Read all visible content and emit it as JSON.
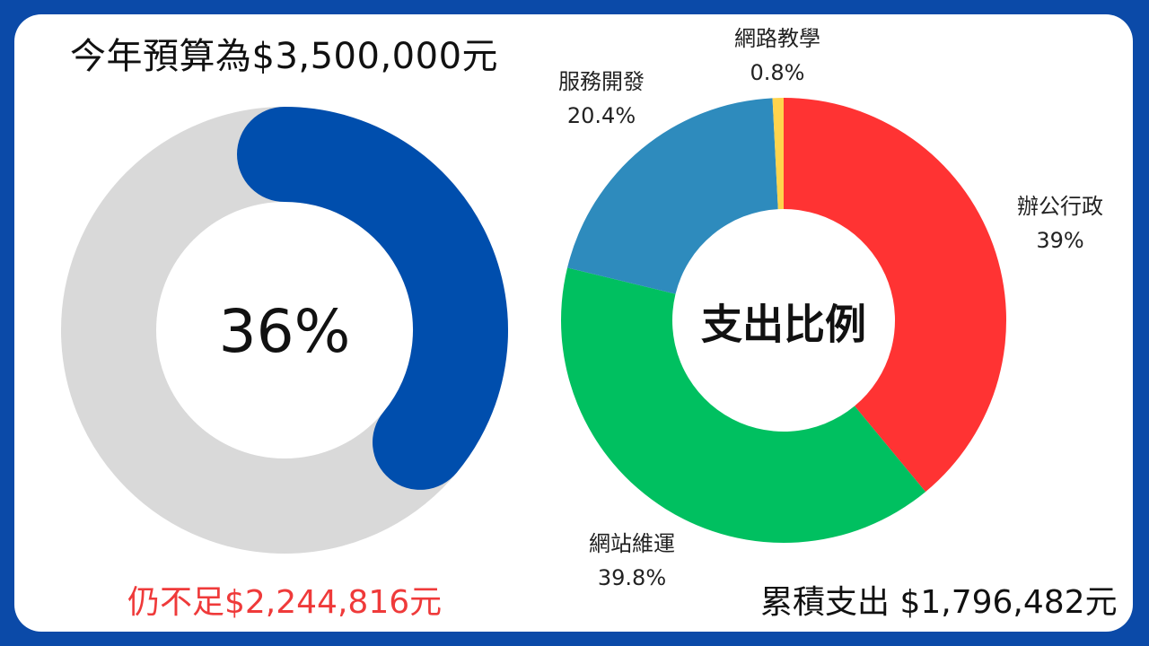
{
  "budget": {
    "title": "今年預算為$3,500,000元",
    "shortfall": "仍不足$2,244,816元",
    "accumulated": "累積支出 $1,796,482元"
  },
  "chart_data": [
    {
      "type": "donut",
      "center_label": "36%",
      "value": 0.36,
      "colors": {
        "progress": "#004ead",
        "track": "#d9d9d9"
      }
    },
    {
      "type": "pie",
      "center_label": "支出比例",
      "slices": [
        {
          "name": "辦公行政",
          "percent_label": "39%",
          "value": 39.0,
          "color": "#ff3333"
        },
        {
          "name": "網站維運",
          "percent_label": "39.8%",
          "value": 39.8,
          "color": "#00c060"
        },
        {
          "name": "服務開發",
          "percent_label": "20.4%",
          "value": 20.4,
          "color": "#2e8bbd"
        },
        {
          "name": "網路教學",
          "percent_label": "0.8%",
          "value": 0.8,
          "color": "#ffd44d"
        }
      ]
    }
  ]
}
